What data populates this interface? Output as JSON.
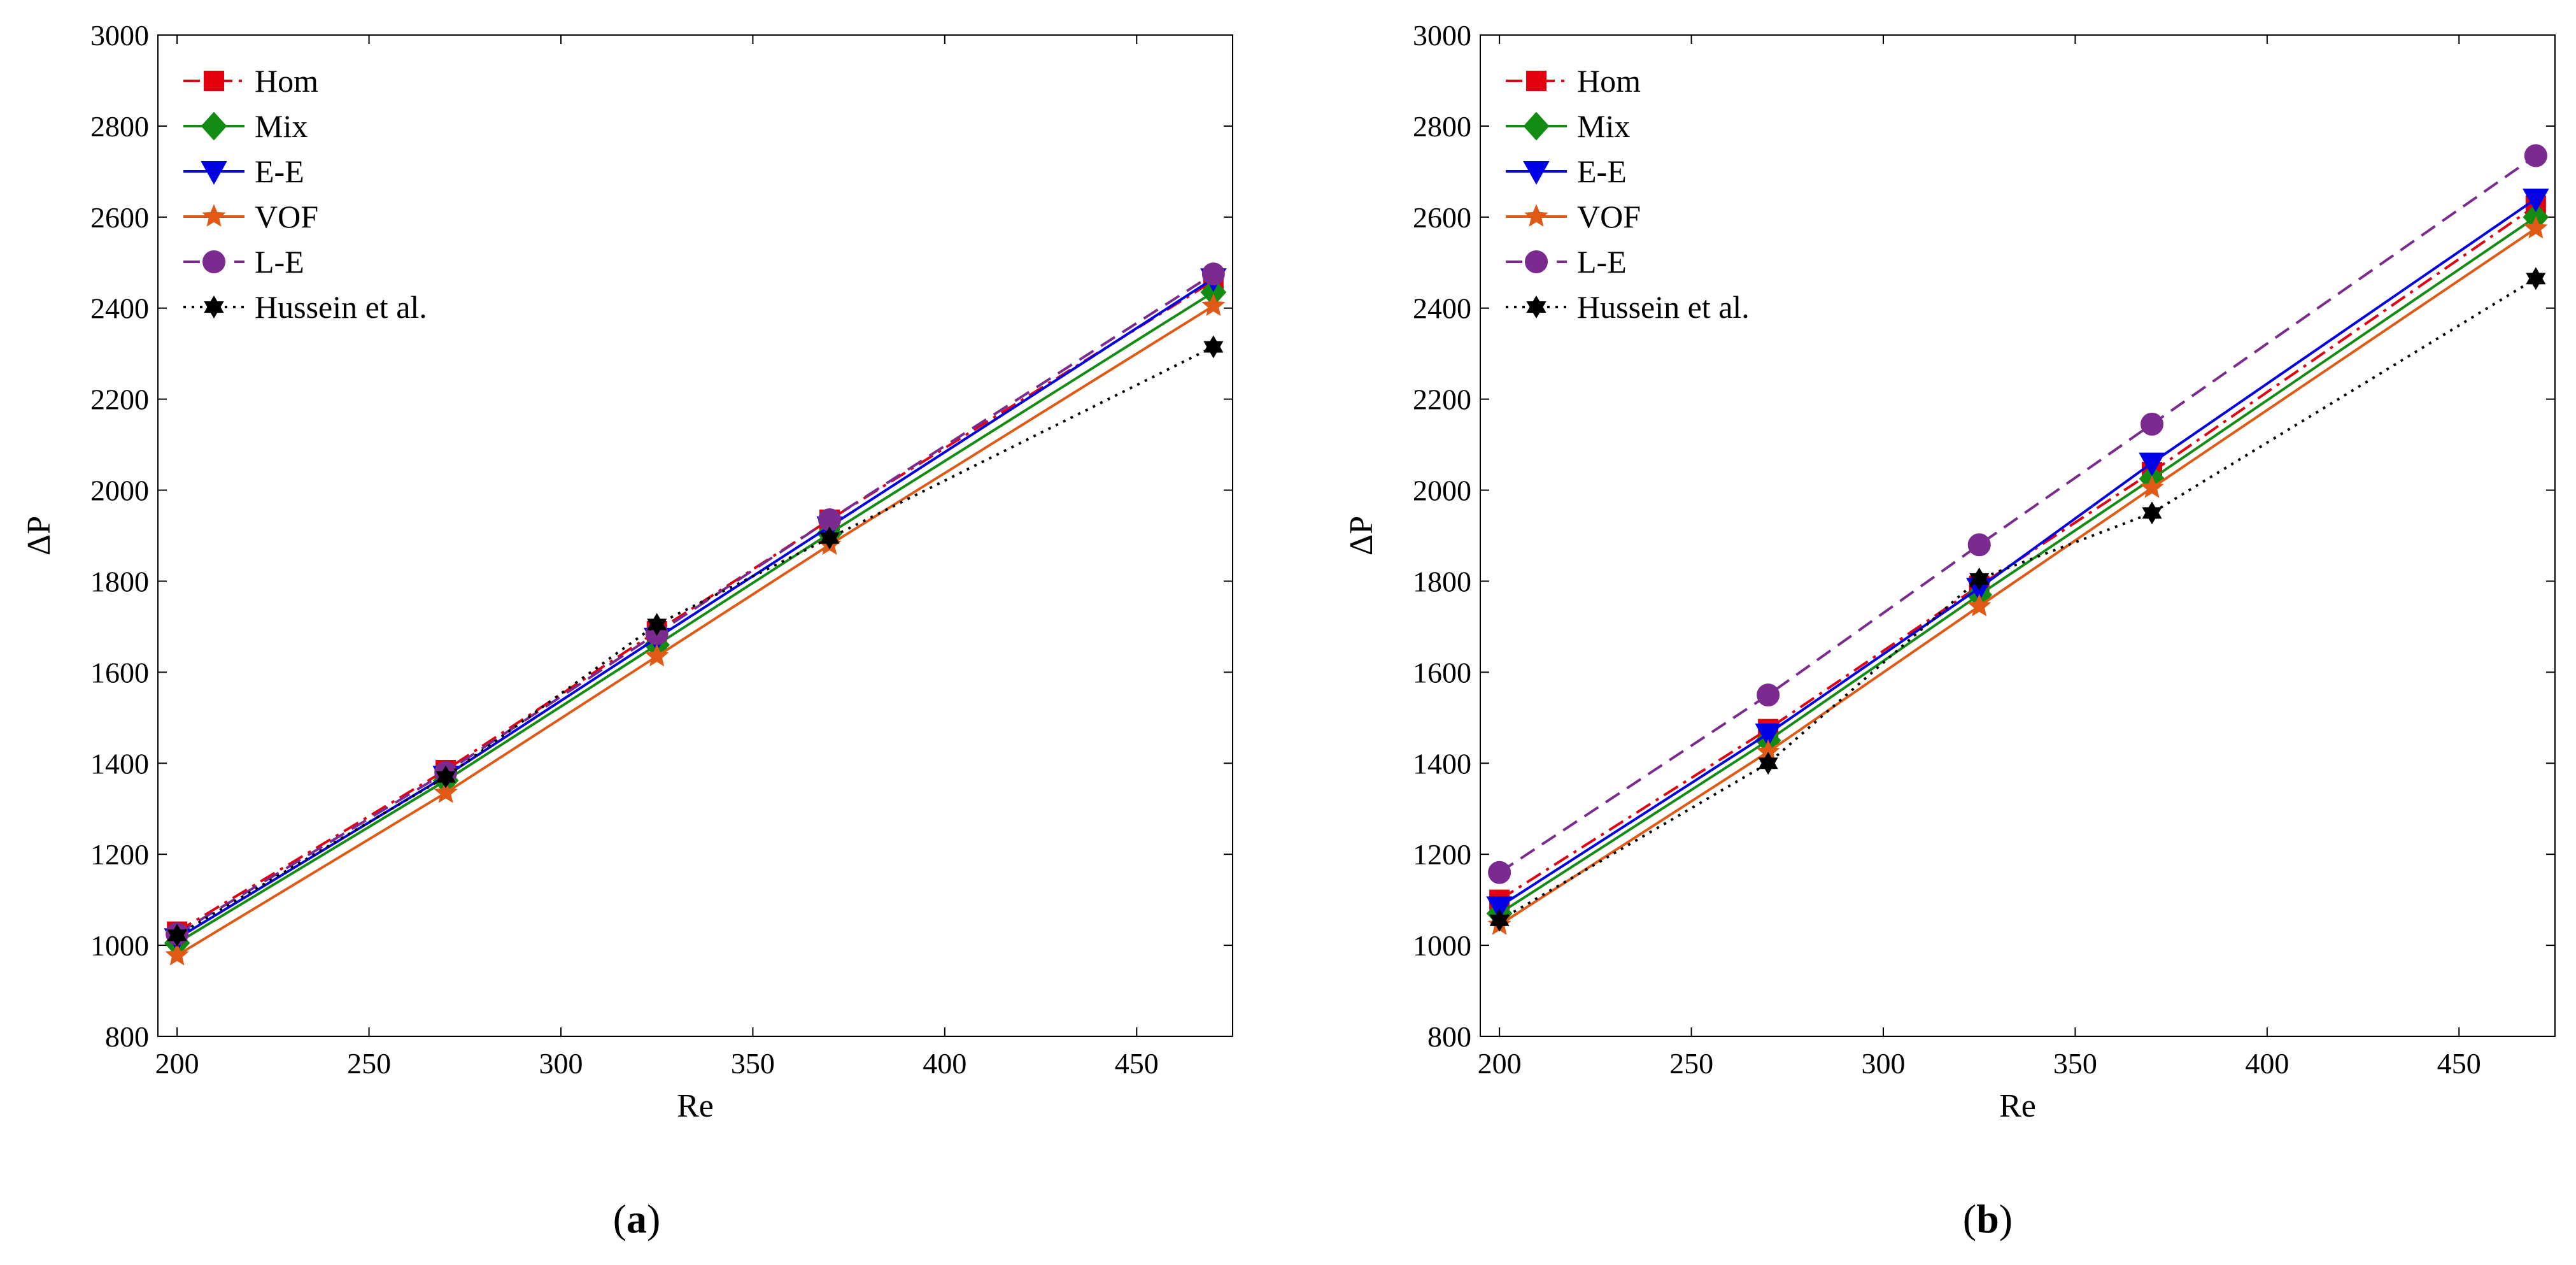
{
  "chart_data": [
    {
      "panel": "(a)",
      "panel_letter": "a",
      "type": "line",
      "xlabel": "Re",
      "ylabel": "ΔP",
      "xlim": [
        195,
        475
      ],
      "ylim": [
        800,
        3000
      ],
      "xticks": [
        200,
        250,
        300,
        350,
        400,
        450
      ],
      "yticks": [
        800,
        1000,
        1200,
        1400,
        1600,
        1800,
        2000,
        2200,
        2400,
        2600,
        2800,
        3000
      ],
      "x": [
        200,
        270,
        325,
        370,
        470
      ],
      "legend_position": "top-left",
      "series": [
        {
          "name": "Hom",
          "color": "#e3000f",
          "dash": "dashdot",
          "marker": "square",
          "values": [
            1030,
            1385,
            1690,
            1935,
            2460
          ]
        },
        {
          "name": "Mix",
          "color": "#128c12",
          "dash": "solid",
          "marker": "diamond",
          "values": [
            1005,
            1362,
            1660,
            1905,
            2435
          ]
        },
        {
          "name": "E-E",
          "color": "#0000e6",
          "dash": "solid",
          "marker": "triangle-down",
          "values": [
            1015,
            1372,
            1675,
            1920,
            2465
          ]
        },
        {
          "name": "VOF",
          "color": "#e05a16",
          "dash": "solid",
          "marker": "star",
          "values": [
            978,
            1335,
            1635,
            1880,
            2405
          ]
        },
        {
          "name": "L-E",
          "color": "#7b2a8f",
          "dash": "dashed",
          "marker": "circle",
          "values": [
            1025,
            1380,
            1685,
            1935,
            2475
          ]
        },
        {
          "name": "Hussein et al.",
          "color": "#000000",
          "dash": "dotted",
          "marker": "hexagram",
          "values": [
            1022,
            1370,
            1705,
            1895,
            2315
          ]
        }
      ]
    },
    {
      "panel": "(b)",
      "panel_letter": "b",
      "type": "line",
      "xlabel": "Re",
      "ylabel": "ΔP",
      "xlim": [
        195,
        475
      ],
      "ylim": [
        800,
        3000
      ],
      "xticks": [
        200,
        250,
        300,
        350,
        400,
        450
      ],
      "yticks": [
        800,
        1000,
        1200,
        1400,
        1600,
        1800,
        2000,
        2200,
        2400,
        2600,
        2800,
        3000
      ],
      "x": [
        200,
        270,
        325,
        370,
        470
      ],
      "legend_position": "top-left",
      "series": [
        {
          "name": "Hom",
          "color": "#e3000f",
          "dash": "dashdot",
          "marker": "square",
          "values": [
            1100,
            1475,
            1790,
            2040,
            2625
          ]
        },
        {
          "name": "Mix",
          "color": "#128c12",
          "dash": "solid",
          "marker": "diamond",
          "values": [
            1070,
            1450,
            1770,
            2025,
            2600
          ]
        },
        {
          "name": "E-E",
          "color": "#0000e6",
          "dash": "solid",
          "marker": "triangle-down",
          "values": [
            1085,
            1465,
            1785,
            2060,
            2640
          ]
        },
        {
          "name": "VOF",
          "color": "#e05a16",
          "dash": "solid",
          "marker": "star",
          "values": [
            1045,
            1425,
            1745,
            2005,
            2575
          ]
        },
        {
          "name": "L-E",
          "color": "#7b2a8f",
          "dash": "dashed",
          "marker": "circle",
          "values": [
            1160,
            1550,
            1880,
            2145,
            2735
          ]
        },
        {
          "name": "Hussein et al.",
          "color": "#000000",
          "dash": "dotted",
          "marker": "hexagram",
          "values": [
            1055,
            1400,
            1805,
            1950,
            2465
          ]
        }
      ]
    }
  ]
}
